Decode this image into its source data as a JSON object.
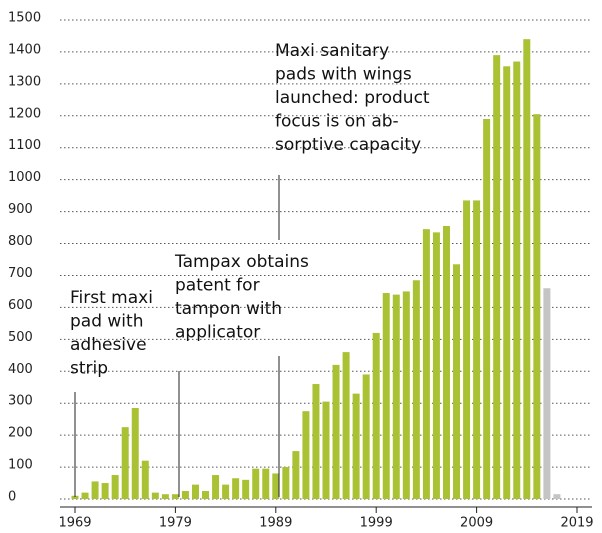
{
  "chart_data": {
    "type": "bar",
    "x": [
      1969,
      1970,
      1971,
      1972,
      1973,
      1974,
      1975,
      1976,
      1977,
      1978,
      1979,
      1980,
      1981,
      1982,
      1983,
      1984,
      1985,
      1986,
      1987,
      1988,
      1989,
      1990,
      1991,
      1992,
      1993,
      1994,
      1995,
      1996,
      1997,
      1998,
      1999,
      2000,
      2001,
      2002,
      2003,
      2004,
      2005,
      2006,
      2007,
      2008,
      2009,
      2010,
      2011,
      2012,
      2013,
      2014,
      2015,
      2016,
      2017,
      2018,
      2019
    ],
    "values": [
      10,
      20,
      55,
      50,
      75,
      225,
      285,
      120,
      20,
      15,
      15,
      25,
      45,
      25,
      75,
      45,
      65,
      60,
      95,
      95,
      80,
      100,
      150,
      275,
      360,
      305,
      420,
      460,
      330,
      390,
      520,
      645,
      640,
      650,
      685,
      845,
      835,
      855,
      735,
      935,
      935,
      1190,
      1390,
      1355,
      1370,
      1440,
      1205,
      660,
      15,
      0,
      0
    ],
    "colors": [
      "#a9c234",
      "#a9c234",
      "#a9c234",
      "#a9c234",
      "#a9c234",
      "#a9c234",
      "#a9c234",
      "#a9c234",
      "#a9c234",
      "#a9c234",
      "#a9c234",
      "#a9c234",
      "#a9c234",
      "#a9c234",
      "#a9c234",
      "#a9c234",
      "#a9c234",
      "#a9c234",
      "#a9c234",
      "#a9c234",
      "#a9c234",
      "#a9c234",
      "#a9c234",
      "#a9c234",
      "#a9c234",
      "#a9c234",
      "#a9c234",
      "#a9c234",
      "#a9c234",
      "#a9c234",
      "#a9c234",
      "#a9c234",
      "#a9c234",
      "#a9c234",
      "#a9c234",
      "#a9c234",
      "#a9c234",
      "#a9c234",
      "#a9c234",
      "#a9c234",
      "#a9c234",
      "#a9c234",
      "#a9c234",
      "#a9c234",
      "#a9c234",
      "#a9c234",
      "#a9c234",
      "#c4c4c4",
      "#c4c4c4",
      "#c4c4c4",
      "#c4c4c4"
    ],
    "xlim": [
      1969,
      2019
    ],
    "xticks": [
      1969,
      1979,
      1989,
      1999,
      2009,
      2019
    ],
    "ylim": [
      0,
      1500
    ],
    "yticks": [
      0,
      100,
      200,
      300,
      400,
      500,
      600,
      700,
      800,
      900,
      1000,
      1100,
      1200,
      1300,
      1400,
      1500
    ],
    "grid": true,
    "annotations": [
      {
        "text": [
          "First maxi",
          "pad with",
          "adhesive",
          "strip"
        ]
      },
      {
        "text": [
          "Tampax obtains",
          "patent for",
          "tampon with",
          "applicator"
        ]
      },
      {
        "text": [
          "Maxi sanitary",
          "pads with wings",
          "launched: product",
          "focus is on ab-",
          "sorptive capacity"
        ]
      }
    ]
  }
}
